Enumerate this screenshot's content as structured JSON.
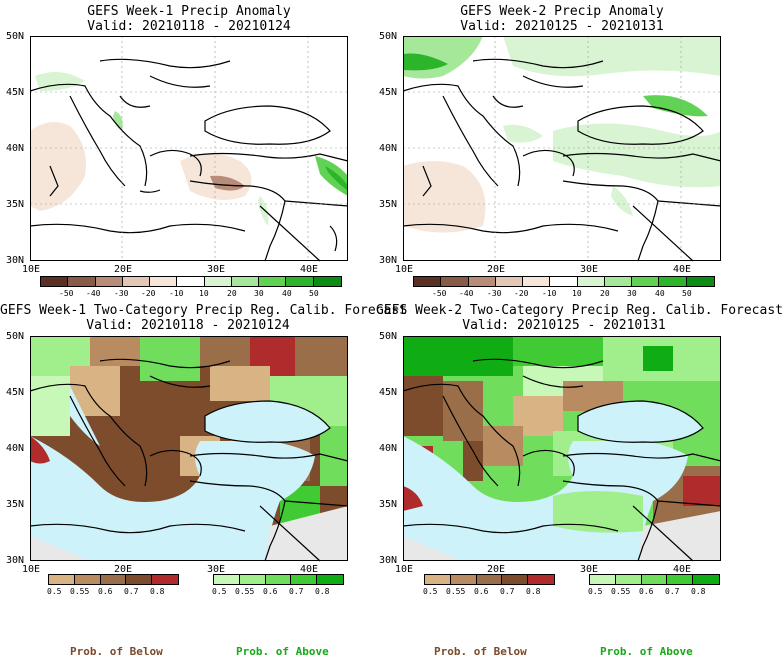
{
  "panels": [
    {
      "title_line1": "GEFS Week-1 Precip Anomaly",
      "title_line2": "Valid: 20210118 - 20210124",
      "lat_labels": [
        "50N",
        "45N",
        "40N",
        "35N",
        "30N"
      ],
      "lon_labels": [
        "10E",
        "20E",
        "30E",
        "40E"
      ],
      "legend_labels": [
        "-50",
        "-40",
        "-30",
        "-20",
        "-10",
        "10",
        "20",
        "30",
        "40",
        "50"
      ]
    },
    {
      "title_line1": "GEFS Week-2 Precip Anomaly",
      "title_line2": "Valid: 20210125 - 20210131",
      "lat_labels": [
        "50N",
        "45N",
        "40N",
        "35N",
        "30N"
      ],
      "lon_labels": [
        "10E",
        "20E",
        "30E",
        "40E"
      ],
      "legend_labels": [
        "-50",
        "-40",
        "-30",
        "-20",
        "-10",
        "10",
        "20",
        "30",
        "40",
        "50"
      ]
    },
    {
      "title_line1": "GEFS Week-1 Two-Category Precip Reg. Calib. Forecast",
      "title_line2": "Valid: 20210118 - 20210124",
      "lat_labels": [
        "50N",
        "45N",
        "40N",
        "35N",
        "30N"
      ],
      "lon_labels": [
        "10E",
        "20E",
        "30E",
        "40E"
      ],
      "below_labels": [
        "0.5",
        "0.55",
        "0.6",
        "0.7",
        "0.8"
      ],
      "above_labels": [
        "0.5",
        "0.55",
        "0.6",
        "0.7",
        "0.8"
      ],
      "prob_below": "Prob. of Below",
      "prob_above": "Prob. of Above"
    },
    {
      "title_line1": "GEFS Week-2 Two-Category Precip Reg. Calib. Forecast",
      "title_line2": "Valid: 20210125 - 20210131",
      "lat_labels": [
        "50N",
        "45N",
        "40N",
        "35N",
        "30N"
      ],
      "lon_labels": [
        "10E",
        "20E",
        "30E",
        "40E"
      ],
      "below_labels": [
        "0.5",
        "0.55",
        "0.6",
        "0.7",
        "0.8"
      ],
      "above_labels": [
        "0.5",
        "0.55",
        "0.6",
        "0.7",
        "0.8"
      ],
      "prob_below": "Prob. of Below",
      "prob_above": "Prob. of Above"
    }
  ],
  "colors": {
    "anomaly_scale": [
      "#5a3024",
      "#8a5a48",
      "#b88c78",
      "#e4c6b4",
      "#f6e6da",
      "#ffffff",
      "#d8f4d2",
      "#a6e89a",
      "#60d254",
      "#2cb42a",
      "#0c8c14"
    ],
    "below_scale": [
      "#d8b484",
      "#b88c60",
      "#9a6e48",
      "#7c4c2c",
      "#b02c2c"
    ],
    "above_scale": [
      "#c8f8b8",
      "#a0ee8c",
      "#70de5c",
      "#40ca34",
      "#10ac14"
    ],
    "sea": "#cdf2fa",
    "prob_below_text": "#7a4a2a",
    "prob_above_text": "#18a818"
  }
}
